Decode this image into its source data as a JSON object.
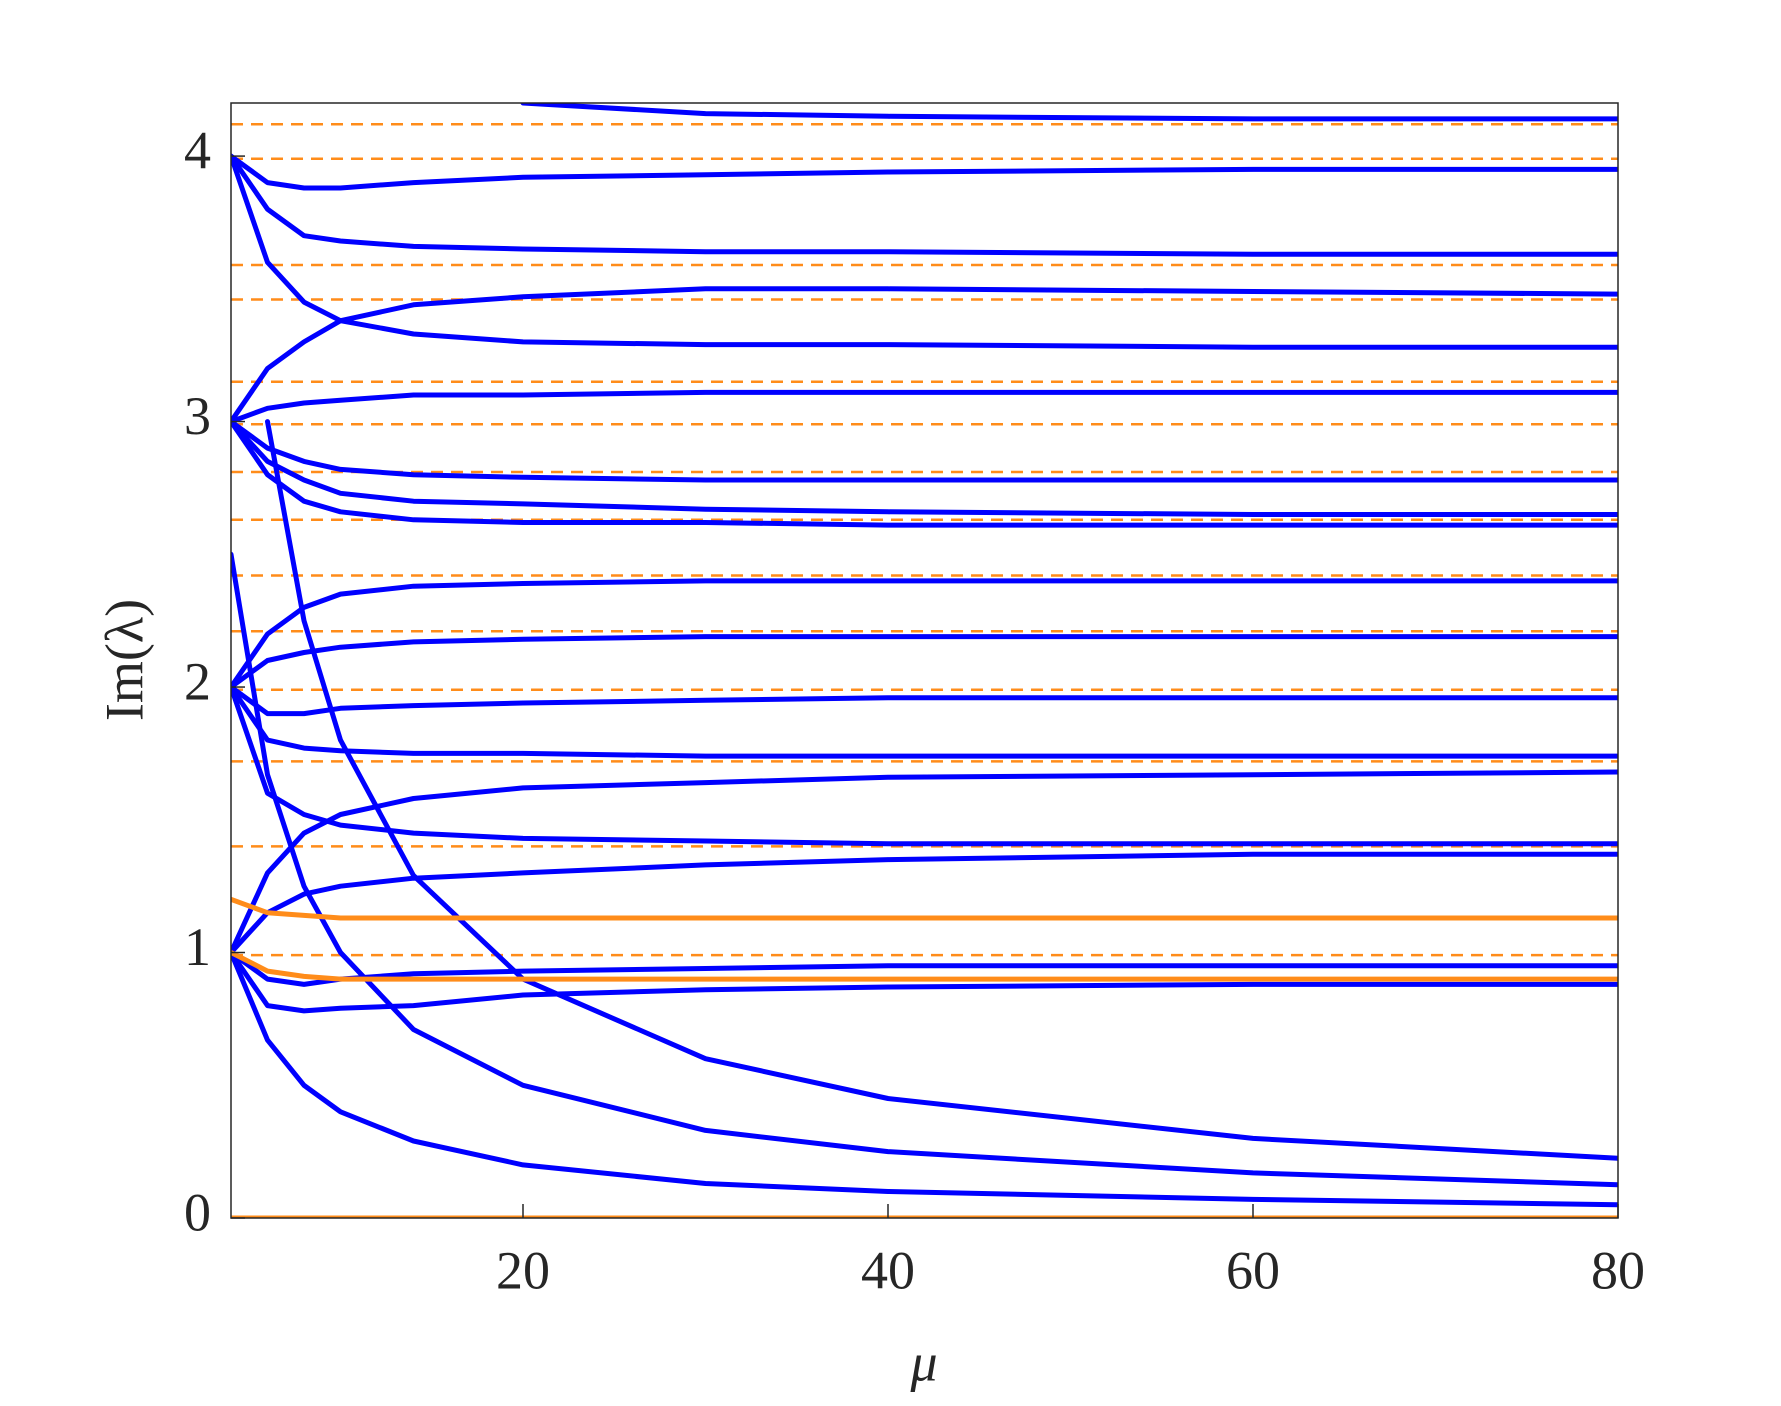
{
  "chart_data": {
    "type": "line",
    "x_label": "μ",
    "y_label": "Im(λ)",
    "xlim": [
      4,
      80
    ],
    "ylim": [
      0,
      4.2
    ],
    "xticks": [
      20,
      40,
      60,
      80
    ],
    "yticks": [
      0,
      1,
      2,
      3,
      4
    ],
    "x": [
      4,
      6,
      8,
      10,
      14,
      20,
      30,
      40,
      60,
      80
    ],
    "series": [
      {
        "color": "#0000ff",
        "values": [
          null,
          3,
          2.25,
          1.8,
          1.29,
          0.9,
          0.6,
          0.45,
          0.3,
          0.225
        ]
      },
      {
        "color": "#0000ff",
        "values": [
          2.5,
          1.67,
          1.25,
          1,
          0.71,
          0.5,
          0.33,
          0.25,
          0.17,
          0.125
        ]
      },
      {
        "color": "#0000ff",
        "values": [
          1,
          0.67,
          0.5,
          0.4,
          0.29,
          0.2,
          0.13,
          0.1,
          0.07,
          0.05
        ]
      },
      {
        "color": "#0000ff",
        "values": [
          null,
          null,
          null,
          null,
          null,
          4.2,
          4.16,
          4.15,
          4.14,
          4.14
        ]
      },
      {
        "color": "#0000ff",
        "values": [
          4,
          3.9,
          3.88,
          3.88,
          3.9,
          3.92,
          3.93,
          3.94,
          3.95,
          3.95
        ]
      },
      {
        "color": "#0000ff",
        "values": [
          4,
          3.8,
          3.7,
          3.68,
          3.66,
          3.65,
          3.64,
          3.64,
          3.63,
          3.63
        ]
      },
      {
        "color": "#0000ff",
        "values": [
          3,
          3.2,
          3.3,
          3.38,
          3.44,
          3.47,
          3.5,
          3.5,
          3.49,
          3.48
        ]
      },
      {
        "color": "#0000ff",
        "values": [
          4,
          3.6,
          3.45,
          3.38,
          3.33,
          3.3,
          3.29,
          3.29,
          3.28,
          3.28
        ]
      },
      {
        "color": "#0000ff",
        "values": [
          3,
          3.05,
          3.07,
          3.08,
          3.1,
          3.1,
          3.11,
          3.11,
          3.11,
          3.11
        ]
      },
      {
        "color": "#0000ff",
        "values": [
          3,
          2.9,
          2.85,
          2.82,
          2.8,
          2.79,
          2.78,
          2.78,
          2.78,
          2.78
        ]
      },
      {
        "color": "#0000ff",
        "values": [
          3,
          2.85,
          2.78,
          2.73,
          2.7,
          2.69,
          2.67,
          2.66,
          2.65,
          2.65
        ]
      },
      {
        "color": "#0000ff",
        "values": [
          3,
          2.8,
          2.7,
          2.66,
          2.63,
          2.62,
          2.62,
          2.61,
          2.61,
          2.61
        ]
      },
      {
        "color": "#0000ff",
        "values": [
          2,
          2.2,
          2.3,
          2.35,
          2.38,
          2.39,
          2.4,
          2.4,
          2.4,
          2.4
        ]
      },
      {
        "color": "#0000ff",
        "values": [
          2,
          2.1,
          2.13,
          2.15,
          2.17,
          2.18,
          2.19,
          2.19,
          2.19,
          2.19
        ]
      },
      {
        "color": "#0000ff",
        "values": [
          2,
          1.9,
          1.9,
          1.92,
          1.93,
          1.94,
          1.95,
          1.96,
          1.96,
          1.96
        ]
      },
      {
        "color": "#0000ff",
        "values": [
          2,
          1.8,
          1.77,
          1.76,
          1.75,
          1.75,
          1.74,
          1.74,
          1.74,
          1.74
        ]
      },
      {
        "color": "#0000ff",
        "values": [
          1,
          1.3,
          1.45,
          1.52,
          1.58,
          1.62,
          1.64,
          1.66,
          1.67,
          1.68
        ]
      },
      {
        "color": "#0000ff",
        "values": [
          2,
          1.6,
          1.52,
          1.48,
          1.45,
          1.43,
          1.42,
          1.41,
          1.41,
          1.41
        ]
      },
      {
        "color": "#0000ff",
        "values": [
          1,
          1.15,
          1.22,
          1.25,
          1.28,
          1.3,
          1.33,
          1.35,
          1.37,
          1.37
        ]
      },
      {
        "color": "#0000ff",
        "values": [
          1,
          0.9,
          0.88,
          0.9,
          0.92,
          0.93,
          0.94,
          0.95,
          0.95,
          0.95
        ]
      },
      {
        "color": "#0000ff",
        "values": [
          1,
          0.8,
          0.78,
          0.79,
          0.8,
          0.84,
          0.86,
          0.87,
          0.88,
          0.88
        ]
      },
      {
        "color": "#ff8c1a",
        "values": [
          1.2,
          1.15,
          1.14,
          1.13,
          1.13,
          1.13,
          1.13,
          1.13,
          1.13,
          1.13
        ]
      },
      {
        "color": "#ff8c1a",
        "values": [
          1,
          0.93,
          0.91,
          0.9,
          0.9,
          0.9,
          0.9,
          0.9,
          0.9,
          0.9
        ]
      },
      {
        "color": "#ff8c1a",
        "values": [
          0,
          0,
          0,
          0,
          0,
          0,
          0,
          0,
          0,
          0
        ]
      }
    ],
    "reference_lines": {
      "color": "#ff8c1a",
      "style": "dashed",
      "values": [
        4.12,
        3.99,
        3.59,
        3.46,
        3.15,
        2.99,
        2.81,
        2.63,
        2.42,
        2.21,
        1.99,
        1.72,
        1.4,
        0.99
      ]
    }
  }
}
